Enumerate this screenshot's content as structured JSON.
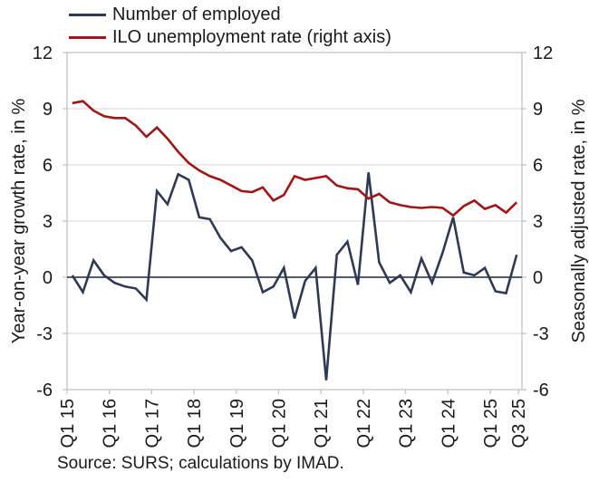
{
  "legend": {
    "items": [
      {
        "label": "Number of employed",
        "color": "#2E3A55"
      },
      {
        "label": "ILO unemployment rate (right axis)",
        "color": "#A51412"
      }
    ]
  },
  "left_axis": {
    "title": "Year-on-year growth rate, in %",
    "ticks": [
      12,
      9,
      6,
      3,
      0,
      -3,
      -6
    ]
  },
  "right_axis": {
    "title": "Seasonally adjusted rate, in %",
    "ticks": [
      12,
      9,
      6,
      3,
      0,
      -3,
      -6
    ]
  },
  "x_axis": {
    "labels": [
      "Q1 15",
      "Q1 16",
      "Q1 17",
      "Q1 18",
      "Q1 19",
      "Q1 20",
      "Q1 21",
      "Q1 22",
      "Q1 23",
      "Q1 24",
      "Q1 25",
      "Q3 25"
    ]
  },
  "source": "Source: SURS; calculations by IMAD.",
  "colors": {
    "grid": "#D4D4D4",
    "plot_border": "#BFBFBF",
    "zero_line": "#3C4454",
    "text": "#1A1A1A"
  },
  "chart_data": {
    "type": "line",
    "x": [
      "Q1 15",
      "Q2 15",
      "Q3 15",
      "Q4 15",
      "Q1 16",
      "Q2 16",
      "Q3 16",
      "Q4 16",
      "Q1 17",
      "Q2 17",
      "Q3 17",
      "Q4 17",
      "Q1 18",
      "Q2 18",
      "Q3 18",
      "Q4 18",
      "Q1 19",
      "Q2 19",
      "Q3 19",
      "Q4 19",
      "Q1 20",
      "Q2 20",
      "Q3 20",
      "Q4 20",
      "Q1 21",
      "Q2 21",
      "Q3 21",
      "Q4 21",
      "Q1 22",
      "Q2 22",
      "Q3 22",
      "Q4 22",
      "Q1 23",
      "Q2 23",
      "Q3 23",
      "Q4 23",
      "Q1 24",
      "Q2 24",
      "Q3 24",
      "Q4 24",
      "Q1 25",
      "Q2 25",
      "Q3 25"
    ],
    "series": [
      {
        "name": "Number of employed",
        "axis": "left",
        "color": "#2E3A55",
        "values": [
          0.1,
          -0.8,
          0.9,
          0.1,
          -0.3,
          -0.5,
          -0.6,
          -1.2,
          4.6,
          3.9,
          5.5,
          5.2,
          3.2,
          3.1,
          2.1,
          1.4,
          1.6,
          0.9,
          -0.8,
          -0.5,
          0.5,
          -2.2,
          -0.2,
          0.5,
          -5.5,
          1.2,
          1.9,
          -0.4,
          5.6,
          0.8,
          -0.3,
          0.1,
          -0.8,
          1.0,
          -0.3,
          1.3,
          3.2,
          0.25,
          0.1,
          0.5,
          -0.75,
          -0.85,
          1.2
        ]
      },
      {
        "name": "ILO unemployment rate (right axis)",
        "axis": "right",
        "color": "#A51412",
        "values": [
          9.3,
          9.4,
          8.9,
          8.6,
          8.5,
          8.5,
          8.1,
          7.5,
          8.0,
          7.4,
          6.7,
          6.1,
          5.7,
          5.4,
          5.2,
          4.9,
          4.6,
          4.55,
          4.8,
          4.1,
          4.4,
          5.4,
          5.2,
          5.3,
          5.4,
          4.9,
          4.75,
          4.7,
          4.2,
          4.45,
          4.0,
          3.85,
          3.75,
          3.7,
          3.75,
          3.7,
          3.3,
          3.8,
          4.1,
          3.65,
          3.85,
          3.45,
          4.0
        ]
      }
    ],
    "title": "",
    "xlabel": "",
    "left_ylabel": "Year-on-year growth rate, in %",
    "right_ylabel": "Seasonally adjusted rate, in %",
    "left_ylim": [
      -6,
      12
    ],
    "right_ylim": [
      -6,
      12
    ],
    "grid": "horizontal",
    "legend_position": "top-left"
  }
}
